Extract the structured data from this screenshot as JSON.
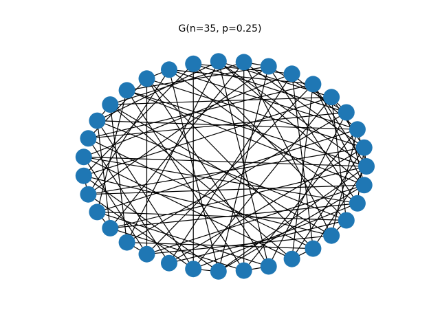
{
  "figure": {
    "title": "G(n=35, p=0.25)"
  },
  "graph": {
    "node_count": 35,
    "edge_probability": 0.25,
    "node_color": "#1f77b4",
    "edge_color": "#000000",
    "layout": "circular",
    "edges": [
      [
        0,
        2
      ],
      [
        0,
        5
      ],
      [
        0,
        9
      ],
      [
        0,
        13
      ],
      [
        0,
        17
      ],
      [
        0,
        21
      ],
      [
        0,
        26
      ],
      [
        0,
        30
      ],
      [
        1,
        4
      ],
      [
        1,
        8
      ],
      [
        1,
        12
      ],
      [
        1,
        19
      ],
      [
        1,
        24
      ],
      [
        1,
        29
      ],
      [
        1,
        33
      ],
      [
        2,
        6
      ],
      [
        2,
        11
      ],
      [
        2,
        15
      ],
      [
        2,
        20
      ],
      [
        2,
        27
      ],
      [
        2,
        31
      ],
      [
        3,
        7
      ],
      [
        3,
        10
      ],
      [
        3,
        16
      ],
      [
        3,
        22
      ],
      [
        3,
        28
      ],
      [
        3,
        34
      ],
      [
        4,
        9
      ],
      [
        4,
        14
      ],
      [
        4,
        18
      ],
      [
        4,
        25
      ],
      [
        4,
        32
      ],
      [
        5,
        11
      ],
      [
        5,
        16
      ],
      [
        5,
        23
      ],
      [
        5,
        29
      ],
      [
        5,
        34
      ],
      [
        6,
        10
      ],
      [
        6,
        17
      ],
      [
        6,
        24
      ],
      [
        6,
        30
      ],
      [
        7,
        13
      ],
      [
        7,
        19
      ],
      [
        7,
        26
      ],
      [
        7,
        33
      ],
      [
        8,
        14
      ],
      [
        8,
        21
      ],
      [
        8,
        27
      ],
      [
        8,
        31
      ],
      [
        9,
        15
      ],
      [
        9,
        22
      ],
      [
        9,
        28
      ],
      [
        9,
        34
      ],
      [
        10,
        18
      ],
      [
        10,
        25
      ],
      [
        10,
        32
      ],
      [
        11,
        19
      ],
      [
        11,
        26
      ],
      [
        11,
        33
      ],
      [
        12,
        16
      ],
      [
        12,
        23
      ],
      [
        12,
        28
      ],
      [
        12,
        30
      ],
      [
        13,
        20
      ],
      [
        13,
        27
      ],
      [
        13,
        34
      ],
      [
        14,
        22
      ],
      [
        14,
        29
      ],
      [
        14,
        31
      ],
      [
        15,
        21
      ],
      [
        15,
        25
      ],
      [
        15,
        32
      ],
      [
        16,
        24
      ],
      [
        16,
        30
      ],
      [
        17,
        23
      ],
      [
        17,
        29
      ],
      [
        17,
        33
      ],
      [
        18,
        26
      ],
      [
        18,
        31
      ],
      [
        19,
        25
      ],
      [
        19,
        34
      ],
      [
        20,
        28
      ],
      [
        20,
        32
      ],
      [
        21,
        27
      ],
      [
        21,
        33
      ],
      [
        22,
        30
      ],
      [
        23,
        31
      ],
      [
        23,
        34
      ],
      [
        24,
        32
      ],
      [
        25,
        33
      ],
      [
        26,
        34
      ],
      [
        0,
        1
      ],
      [
        3,
        4
      ],
      [
        7,
        8
      ],
      [
        11,
        12
      ],
      [
        14,
        15
      ],
      [
        18,
        19
      ],
      [
        20,
        21
      ],
      [
        22,
        23
      ],
      [
        25,
        26
      ],
      [
        27,
        28
      ],
      [
        29,
        30
      ],
      [
        31,
        32
      ]
    ]
  }
}
